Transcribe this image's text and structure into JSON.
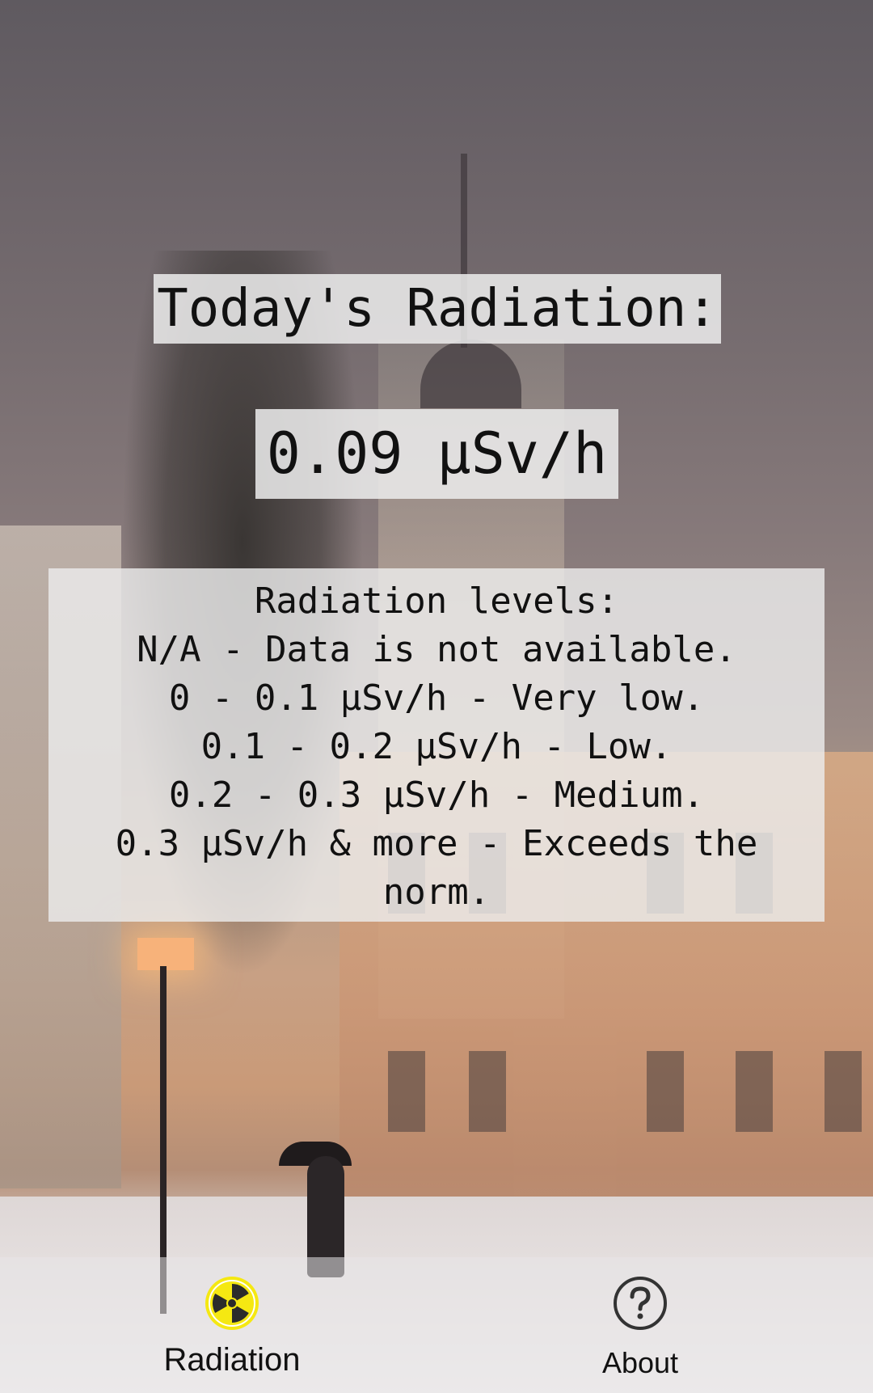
{
  "main": {
    "title": "Today's Radiation:",
    "value": "0.09 µSv/h"
  },
  "levels": {
    "heading": "Radiation levels:",
    "lines": [
      "N/A - Data is not available.",
      "0 - 0.1 µSv/h - Very low.",
      "0.1 - 0.2 µSv/h - Low.",
      "0.2 - 0.3 µSv/h - Medium.",
      "0.3 µSv/h & more - Exceeds the",
      "norm."
    ]
  },
  "bottom_nav": {
    "items": [
      {
        "label": "Radiation",
        "icon": "radiation-icon",
        "active": true,
        "icon_color": "#f5e812"
      },
      {
        "label": "About",
        "icon": "help-circle-icon",
        "active": false,
        "icon_color": "#333333"
      }
    ]
  }
}
